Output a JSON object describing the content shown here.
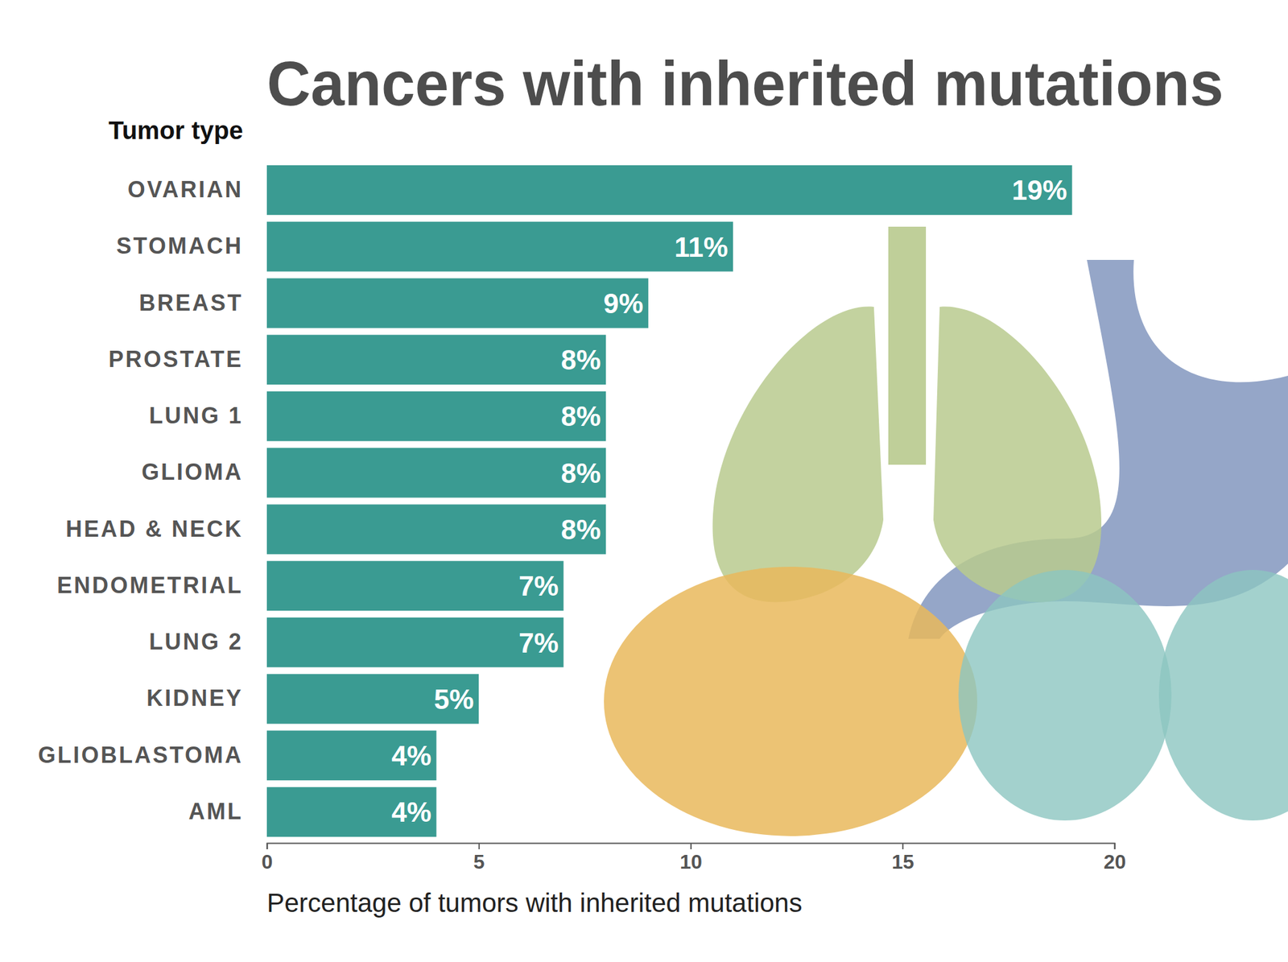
{
  "chart_data": {
    "type": "bar",
    "orientation": "horizontal",
    "title": "Cancers with inherited mutations",
    "ylabel": "Tumor type",
    "xlabel": "Percentage of tumors with inherited mutations",
    "categories": [
      "OVARIAN",
      "STOMACH",
      "BREAST",
      "PROSTATE",
      "LUNG 1",
      "GLIOMA",
      "HEAD & NECK",
      "ENDOMETRIAL",
      "LUNG 2",
      "KIDNEY",
      "GLIOBLASTOMA",
      "AML"
    ],
    "values": [
      19,
      11,
      9,
      8,
      8,
      8,
      8,
      7,
      7,
      5,
      4,
      4
    ],
    "value_labels": [
      "19%",
      "11%",
      "9%",
      "8%",
      "8%",
      "8%",
      "8%",
      "7%",
      "7%",
      "5%",
      "4%",
      "4%"
    ],
    "color": "#3a9b92",
    "xlim": [
      0,
      20
    ],
    "xticks": [
      0,
      5,
      10,
      15,
      20
    ],
    "grid": false,
    "data_labels": true
  }
}
